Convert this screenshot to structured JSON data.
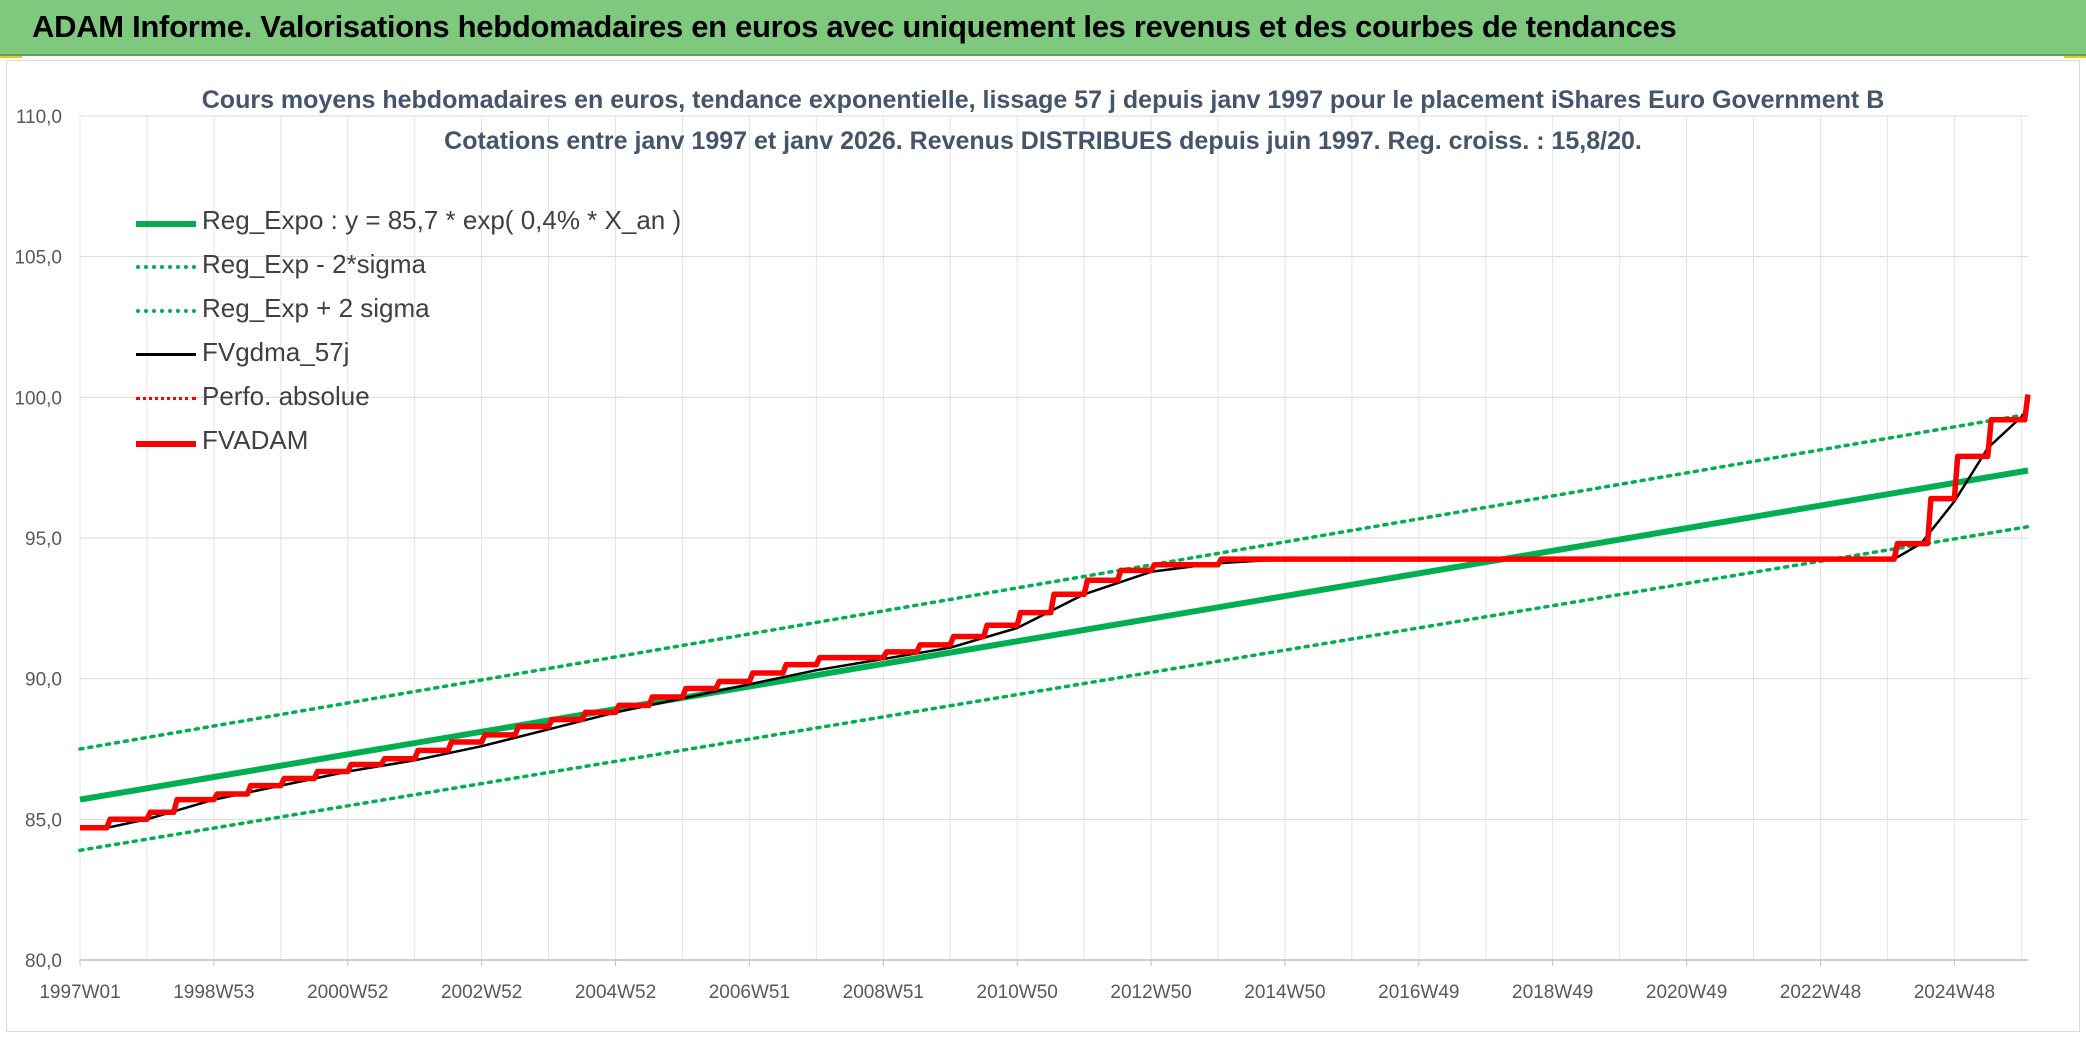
{
  "banner": {
    "title": "ADAM Informe. Valorisations hebdomadaires en euros avec uniquement les revenus et des courbes de tendances"
  },
  "colors": {
    "banner_bg": "#7fc97f",
    "corner_accent": "#f0c419",
    "reg_expo": "#00b050",
    "fvgdma": "#000000",
    "fvadam": "#ff0000",
    "grid": "#d9d9d9",
    "title_text": "#44546a"
  },
  "chart_data": {
    "type": "line",
    "title": "Cours moyens hebdomadaires en euros, tendance exponentielle, lissage 57 j depuis janv 1997 pour le placement iShares Euro Government B",
    "subtitle": "Cotations entre janv 1997 et janv 2026. Revenus DISTRIBUES depuis juin 1997. Reg. croiss. : 15,8/20.",
    "xlabel": "",
    "ylabel": "",
    "ylim": [
      80,
      110
    ],
    "yticks": [
      "80,0",
      "85,0",
      "90,0",
      "95,0",
      "100,0",
      "105,0",
      "110,0"
    ],
    "x_range_years": [
      1997.0,
      2026.1
    ],
    "xtick_labels": [
      {
        "label": "1997W01",
        "year": 1997.0
      },
      {
        "label": "1998W53",
        "year": 1999.0
      },
      {
        "label": "2000W52",
        "year": 2001.0
      },
      {
        "label": "2002W52",
        "year": 2003.0
      },
      {
        "label": "2004W52",
        "year": 2005.0
      },
      {
        "label": "2006W51",
        "year": 2007.0
      },
      {
        "label": "2008W51",
        "year": 2009.0
      },
      {
        "label": "2010W50",
        "year": 2011.0
      },
      {
        "label": "2012W50",
        "year": 2013.0
      },
      {
        "label": "2014W50",
        "year": 2015.0
      },
      {
        "label": "2016W49",
        "year": 2017.0
      },
      {
        "label": "2018W49",
        "year": 2019.0
      },
      {
        "label": "2020W49",
        "year": 2021.0
      },
      {
        "label": "2022W48",
        "year": 2023.0
      },
      {
        "label": "2024W48",
        "year": 2025.0
      }
    ],
    "grid": true,
    "legend_position": "top-left",
    "series": [
      {
        "name": "Reg_Expo : y = 85,7 * exp( 0,4% *  X_an )",
        "style": "solid-thick",
        "color": "#00b050",
        "points": [
          [
            1997.0,
            85.7
          ],
          [
            2026.1,
            97.4
          ]
        ]
      },
      {
        "name": "Reg_Exp - 2*sigma",
        "style": "dotted",
        "color": "#00b050",
        "points": [
          [
            1997.0,
            83.9
          ],
          [
            2026.1,
            95.4
          ]
        ]
      },
      {
        "name": "Reg_Exp + 2 sigma",
        "style": "dotted",
        "color": "#00b050",
        "points": [
          [
            1997.0,
            87.5
          ],
          [
            2026.1,
            99.4
          ]
        ]
      },
      {
        "name": "FVgdma_57j",
        "style": "solid-thin",
        "color": "#000000",
        "points": [
          [
            1997.0,
            84.7
          ],
          [
            1997.4,
            84.7
          ],
          [
            1998.0,
            85.0
          ],
          [
            1999.0,
            85.7
          ],
          [
            2000.0,
            86.2
          ],
          [
            2001.0,
            86.7
          ],
          [
            2002.0,
            87.1
          ],
          [
            2003.0,
            87.6
          ],
          [
            2004.0,
            88.2
          ],
          [
            2005.0,
            88.8
          ],
          [
            2006.0,
            89.3
          ],
          [
            2007.0,
            89.8
          ],
          [
            2008.0,
            90.3
          ],
          [
            2009.0,
            90.7
          ],
          [
            2010.0,
            91.1
          ],
          [
            2011.0,
            91.8
          ],
          [
            2012.0,
            93.0
          ],
          [
            2013.0,
            93.8
          ],
          [
            2014.0,
            94.1
          ],
          [
            2015.0,
            94.25
          ],
          [
            2024.1,
            94.25
          ],
          [
            2024.5,
            94.8
          ],
          [
            2025.0,
            96.3
          ],
          [
            2025.5,
            98.2
          ],
          [
            2026.0,
            99.3
          ],
          [
            2026.1,
            99.6
          ]
        ]
      },
      {
        "name": "Perfo. absolue",
        "style": "dotted",
        "color": "#ff0000",
        "points": []
      },
      {
        "name": "FVADAM",
        "style": "step-thick",
        "color": "#ff0000",
        "points": [
          [
            1997.0,
            84.7
          ],
          [
            1997.4,
            84.7
          ],
          [
            1997.45,
            85.0
          ],
          [
            1998.0,
            85.0
          ],
          [
            1998.05,
            85.25
          ],
          [
            1998.4,
            85.25
          ],
          [
            1998.45,
            85.7
          ],
          [
            1999.0,
            85.7
          ],
          [
            1999.05,
            85.9
          ],
          [
            1999.5,
            85.9
          ],
          [
            1999.55,
            86.2
          ],
          [
            2000.0,
            86.2
          ],
          [
            2000.05,
            86.45
          ],
          [
            2000.5,
            86.45
          ],
          [
            2000.55,
            86.7
          ],
          [
            2001.0,
            86.7
          ],
          [
            2001.05,
            86.95
          ],
          [
            2001.5,
            86.95
          ],
          [
            2001.55,
            87.15
          ],
          [
            2002.0,
            87.15
          ],
          [
            2002.05,
            87.45
          ],
          [
            2002.5,
            87.45
          ],
          [
            2002.55,
            87.75
          ],
          [
            2003.0,
            87.75
          ],
          [
            2003.05,
            88.0
          ],
          [
            2003.5,
            88.0
          ],
          [
            2003.55,
            88.3
          ],
          [
            2004.0,
            88.3
          ],
          [
            2004.05,
            88.55
          ],
          [
            2004.5,
            88.55
          ],
          [
            2004.55,
            88.8
          ],
          [
            2005.0,
            88.8
          ],
          [
            2005.05,
            89.05
          ],
          [
            2005.5,
            89.05
          ],
          [
            2005.55,
            89.35
          ],
          [
            2006.0,
            89.35
          ],
          [
            2006.05,
            89.65
          ],
          [
            2006.5,
            89.65
          ],
          [
            2006.55,
            89.9
          ],
          [
            2007.0,
            89.9
          ],
          [
            2007.05,
            90.2
          ],
          [
            2007.5,
            90.2
          ],
          [
            2007.55,
            90.5
          ],
          [
            2008.0,
            90.5
          ],
          [
            2008.05,
            90.75
          ],
          [
            2009.0,
            90.75
          ],
          [
            2009.05,
            90.95
          ],
          [
            2009.5,
            90.95
          ],
          [
            2009.55,
            91.2
          ],
          [
            2010.0,
            91.2
          ],
          [
            2010.05,
            91.5
          ],
          [
            2010.5,
            91.5
          ],
          [
            2010.55,
            91.9
          ],
          [
            2011.0,
            91.9
          ],
          [
            2011.05,
            92.35
          ],
          [
            2011.5,
            92.35
          ],
          [
            2011.55,
            93.0
          ],
          [
            2012.0,
            93.0
          ],
          [
            2012.05,
            93.5
          ],
          [
            2012.5,
            93.5
          ],
          [
            2012.55,
            93.85
          ],
          [
            2013.0,
            93.85
          ],
          [
            2013.05,
            94.05
          ],
          [
            2014.0,
            94.05
          ],
          [
            2014.05,
            94.25
          ],
          [
            2024.1,
            94.25
          ],
          [
            2024.15,
            94.8
          ],
          [
            2024.6,
            94.8
          ],
          [
            2024.65,
            96.4
          ],
          [
            2025.0,
            96.4
          ],
          [
            2025.05,
            97.9
          ],
          [
            2025.5,
            97.9
          ],
          [
            2025.55,
            99.2
          ],
          [
            2026.05,
            99.2
          ],
          [
            2026.1,
            100.1
          ]
        ]
      }
    ]
  }
}
